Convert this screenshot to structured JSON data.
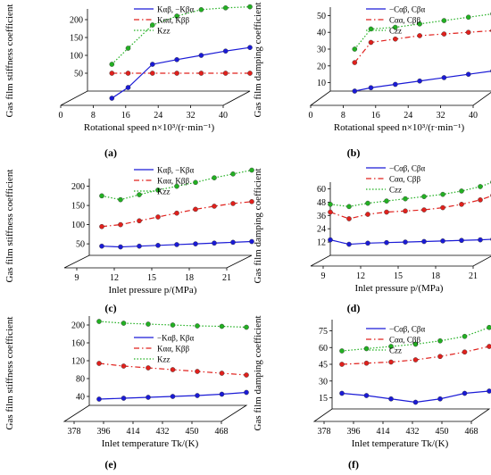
{
  "colors": {
    "blue": "#1a1ad6",
    "red": "#e0201c",
    "green": "#22b022",
    "axis": "#000000"
  },
  "chart_data": [
    {
      "id": "a",
      "type": "line",
      "panel_label": "(a)",
      "ylabel": "Gas film stiffness coefficient",
      "xlabel": "Rotational speed n×10³/(r·min⁻¹)",
      "x_ticks": [
        "0",
        "8",
        "16",
        "24",
        "32",
        "40"
      ],
      "xlim": [
        0,
        40
      ],
      "y_ticks": [
        "50",
        "100",
        "150",
        "200"
      ],
      "ylim": [
        0,
        230
      ],
      "legend": [
        "Kαβ, −Kβα",
        "Kαα, Kββ",
        "Kzz"
      ],
      "x": [
        6,
        10,
        16,
        22,
        28,
        34,
        40
      ],
      "series": [
        {
          "name": "Kαβ, −Kβα",
          "values": [
            -20,
            10,
            75,
            88,
            100,
            112,
            122
          ]
        },
        {
          "name": "Kαα, Kββ",
          "values": [
            50,
            50,
            50,
            50,
            50,
            50,
            50
          ]
        },
        {
          "name": "Kzz",
          "values": [
            75,
            120,
            185,
            210,
            228,
            233,
            236
          ]
        }
      ]
    },
    {
      "id": "b",
      "type": "line",
      "panel_label": "(b)",
      "ylabel": "Gas film damping coefficient",
      "xlabel": "Rotational speed n×10³/(r·min⁻¹)",
      "x_ticks": [
        "0",
        "8",
        "16",
        "24",
        "32",
        "40"
      ],
      "xlim": [
        0,
        40
      ],
      "y_ticks": [
        "10",
        "20",
        "30",
        "40",
        "50"
      ],
      "ylim": [
        5,
        55
      ],
      "legend": [
        "−Cαβ, Cβα",
        "Cαα, Cββ",
        "Czz"
      ],
      "x": [
        6,
        10,
        16,
        22,
        28,
        34,
        40
      ],
      "series": [
        {
          "name": "−Cαβ, Cβα",
          "values": [
            5,
            7,
            9,
            11,
            13,
            15,
            17
          ]
        },
        {
          "name": "Cαα, Cββ",
          "values": [
            22,
            34,
            36,
            38,
            39,
            40,
            41
          ]
        },
        {
          "name": "Czz",
          "values": [
            30,
            42,
            43,
            45,
            47,
            49,
            51
          ]
        }
      ]
    },
    {
      "id": "c",
      "type": "line",
      "panel_label": "(c)",
      "ylabel": "Gas film stiffness coefficient",
      "xlabel": "Inlet pressure p/(MPa)",
      "x_ticks": [
        "9",
        "12",
        "15",
        "18",
        "21"
      ],
      "xlim": [
        8,
        21
      ],
      "y_ticks": [
        "50",
        "100",
        "150",
        "200"
      ],
      "ylim": [
        20,
        220
      ],
      "legend": [
        "Kαβ, −Kβα",
        "Kαα, Kββ",
        "Kzz"
      ],
      "x": [
        9,
        10.5,
        12,
        13.5,
        15,
        16.5,
        18,
        19.5,
        21
      ],
      "series": [
        {
          "name": "Kαβ, −Kβα",
          "values": [
            44,
            42,
            44,
            46,
            48,
            50,
            52,
            54,
            56
          ]
        },
        {
          "name": "Kαα, Kββ",
          "values": [
            95,
            100,
            110,
            120,
            130,
            140,
            148,
            155,
            160
          ]
        },
        {
          "name": "Kzz",
          "values": [
            175,
            165,
            178,
            190,
            200,
            210,
            222,
            232,
            242
          ]
        }
      ]
    },
    {
      "id": "d",
      "type": "line",
      "panel_label": "(d)",
      "ylabel": "Gas film damping coefficient",
      "xlabel": "Inlet pressure p/(MPa)",
      "x_ticks": [
        "9",
        "12",
        "15",
        "18",
        "21"
      ],
      "xlim": [
        8,
        21
      ],
      "y_ticks": [
        "12",
        "24",
        "36",
        "48",
        "60"
      ],
      "ylim": [
        0,
        66
      ],
      "legend": [
        "−Cαβ, Cβα",
        "Cαα, Cββ",
        "Czz"
      ],
      "x": [
        8,
        9.5,
        11,
        12.5,
        14,
        15.5,
        17,
        18.5,
        20,
        21
      ],
      "series": [
        {
          "name": "−Cαβ, Cβα",
          "values": [
            14,
            10,
            11,
            11.5,
            12,
            12.5,
            13,
            13.5,
            14,
            14.5
          ]
        },
        {
          "name": "Cαα, Cββ",
          "values": [
            39,
            33,
            37,
            39,
            40,
            41,
            43,
            46,
            50,
            54
          ]
        },
        {
          "name": "Czz",
          "values": [
            46,
            44,
            47,
            49,
            51,
            53,
            55,
            58,
            62,
            66
          ]
        }
      ]
    },
    {
      "id": "e",
      "type": "line",
      "panel_label": "(e)",
      "ylabel": "Gas film stiffness coefficient",
      "xlabel": "Inlet temperature Tk/(K)",
      "x_ticks": [
        "378",
        "396",
        "414",
        "432",
        "450",
        "468"
      ],
      "xlim": [
        372,
        468
      ],
      "y_ticks": [
        "40",
        "80",
        "120",
        "160",
        "200"
      ],
      "ylim": [
        20,
        220
      ],
      "legend": [
        "−Kαβ, Kβα",
        "Kαα, Kββ",
        "Kzz"
      ],
      "x": [
        378,
        393,
        408,
        423,
        438,
        453,
        468
      ],
      "series": [
        {
          "name": "−Kαβ, Kβα",
          "values": [
            34,
            36,
            38,
            40,
            42,
            45,
            49
          ]
        },
        {
          "name": "Kαα, Kββ",
          "values": [
            114,
            108,
            104,
            100,
            96,
            92,
            88
          ]
        },
        {
          "name": "Kzz",
          "values": [
            208,
            204,
            202,
            200,
            198,
            197,
            195
          ]
        }
      ]
    },
    {
      "id": "f",
      "type": "line",
      "panel_label": "(f)",
      "ylabel": "Gas film damping coefficient",
      "xlabel": "Inlet temperature Tk/(K)",
      "x_ticks": [
        "378",
        "396",
        "414",
        "432",
        "450",
        "468"
      ],
      "xlim": [
        372,
        468
      ],
      "y_ticks": [
        "15",
        "30",
        "45",
        "60",
        "75"
      ],
      "ylim": [
        5,
        85
      ],
      "legend": [
        "−Cαβ, Cβα",
        "Cαα, Cββ",
        "Czz"
      ],
      "x": [
        378,
        393,
        408,
        423,
        438,
        453,
        468
      ],
      "series": [
        {
          "name": "−Cαβ, Cβα",
          "values": [
            19,
            17,
            14,
            11,
            14,
            19,
            21
          ]
        },
        {
          "name": "Cαα, Cββ",
          "values": [
            45,
            46,
            47,
            49,
            52,
            56,
            61
          ]
        },
        {
          "name": "Czz",
          "values": [
            57,
            59,
            61,
            63,
            66,
            70,
            78
          ]
        }
      ]
    }
  ]
}
